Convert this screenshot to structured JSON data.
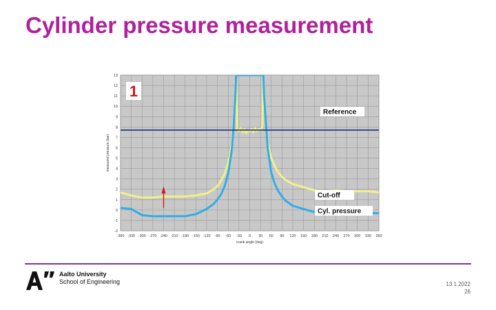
{
  "slide": {
    "title": "Cylinder pressure measurement",
    "footer": {
      "org_line1": "Aalto University",
      "org_line2": "School of Engineering",
      "date": "13.1.2022",
      "page": "26"
    }
  },
  "chart_data": {
    "type": "line",
    "title": "",
    "xlabel": "crank angle (deg)",
    "ylabel": "measured pressure (bar)",
    "xlim": [
      -360,
      360
    ],
    "ylim": [
      -2,
      13
    ],
    "xticks": [
      -360,
      -330,
      -300,
      -270,
      -240,
      -210,
      -180,
      -150,
      -120,
      -90,
      -60,
      -30,
      0,
      30,
      60,
      90,
      120,
      150,
      180,
      210,
      240,
      270,
      300,
      330,
      360
    ],
    "yticks": [
      -2,
      -1,
      0,
      1,
      2,
      3,
      4,
      5,
      6,
      7,
      8,
      9,
      10,
      11,
      12,
      13
    ],
    "grid": true,
    "panel_label": "1",
    "colors": {
      "background": "#c8c8c8",
      "grid": "#9a9a9a",
      "reference": "#1b2f7a",
      "cutoff": "#f2f08a",
      "cyl_pressure": "#2eaee6",
      "panel_label": "#d11a1a",
      "arrow": "#d11a1a"
    },
    "series": [
      {
        "name": "Reference",
        "x": [
          -360,
          360
        ],
        "y": [
          7.7,
          7.7
        ]
      },
      {
        "name": "Cut-off",
        "x": [
          -360,
          -330,
          -300,
          -270,
          -240,
          -210,
          -180,
          -150,
          -120,
          -100,
          -90,
          -80,
          -70,
          -60,
          -50,
          -45,
          -40,
          -38,
          -35,
          -30,
          -25,
          -20,
          -15,
          -10,
          -5,
          0,
          5,
          10,
          15,
          20,
          25,
          30,
          35,
          38,
          40,
          45,
          50,
          60,
          70,
          80,
          90,
          100,
          120,
          150,
          180,
          210,
          240,
          270,
          300,
          330,
          360
        ],
        "y": [
          1.7,
          1.4,
          1.2,
          1.2,
          1.3,
          1.3,
          1.3,
          1.4,
          1.6,
          2.0,
          2.3,
          2.8,
          3.5,
          4.5,
          6.3,
          8.5,
          11.0,
          13.0,
          7.8,
          7.6,
          7.9,
          7.5,
          7.8,
          7.4,
          7.7,
          7.6,
          7.8,
          7.5,
          7.9,
          7.6,
          7.8,
          7.7,
          8.0,
          13.0,
          11.0,
          8.5,
          6.5,
          5.0,
          4.2,
          3.6,
          3.2,
          2.9,
          2.5,
          2.2,
          1.9,
          1.8,
          1.9,
          1.8,
          1.8,
          1.8,
          1.7
        ]
      },
      {
        "name": "Cyl. pressure",
        "x": [
          -360,
          -330,
          -300,
          -270,
          -240,
          -210,
          -180,
          -150,
          -120,
          -100,
          -90,
          -80,
          -70,
          -60,
          -50,
          -45,
          -40,
          -38,
          38,
          40,
          45,
          50,
          60,
          70,
          80,
          90,
          100,
          120,
          150,
          180,
          210,
          240,
          270,
          300,
          330,
          360
        ],
        "y": [
          0.2,
          0.1,
          -0.5,
          -0.6,
          -0.6,
          -0.6,
          -0.6,
          -0.4,
          0.1,
          0.6,
          1.0,
          1.5,
          2.3,
          3.5,
          5.8,
          8.0,
          11.0,
          13.0,
          13.0,
          11.0,
          8.5,
          6.0,
          3.6,
          2.5,
          1.8,
          1.3,
          0.9,
          0.4,
          0.1,
          -0.2,
          -0.3,
          -0.4,
          -0.3,
          -0.3,
          -0.3,
          -0.3
        ]
      }
    ],
    "legend": {
      "Reference": "Reference",
      "Cut-off": "Cut-off",
      "Cyl. pressure": "Cyl. pressure"
    }
  }
}
